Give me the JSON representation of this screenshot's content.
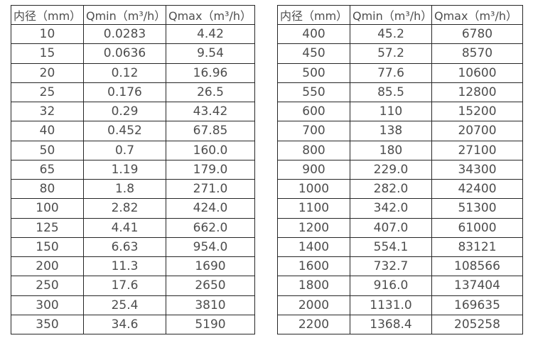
{
  "page": {
    "background": "#ffffff",
    "text_color": "#4d4d4d",
    "border_color": "#262626"
  },
  "tables": [
    {
      "name": "small-diameter-flow-table",
      "headers": [
        "内径（mm）",
        "Qmin（m³/h）",
        "Qmax（m³/h）"
      ],
      "rows": [
        [
          "10",
          "0.0283",
          "4.42"
        ],
        [
          "15",
          "0.0636",
          "9.54"
        ],
        [
          "20",
          "0.12",
          "16.96"
        ],
        [
          "25",
          "0.176",
          "26.5"
        ],
        [
          "32",
          "0.29",
          "43.42"
        ],
        [
          "40",
          "0.452",
          "67.85"
        ],
        [
          "50",
          "0.7",
          "160.0"
        ],
        [
          "65",
          "1.19",
          "179.0"
        ],
        [
          "80",
          "1.8",
          "271.0"
        ],
        [
          "100",
          "2.82",
          "424.0"
        ],
        [
          "125",
          "4.41",
          "662.0"
        ],
        [
          "150",
          "6.63",
          "954.0"
        ],
        [
          "200",
          "11.3",
          "1690"
        ],
        [
          "250",
          "17.6",
          "2650"
        ],
        [
          "300",
          "25.4",
          "3810"
        ],
        [
          "350",
          "34.6",
          "5190"
        ]
      ]
    },
    {
      "name": "large-diameter-flow-table",
      "headers": [
        "内径（mm）",
        "Qmin（m³/h）",
        "Qmax（m³/h）"
      ],
      "rows": [
        [
          "400",
          "45.2",
          "6780"
        ],
        [
          "450",
          "57.2",
          "8570"
        ],
        [
          "500",
          "77.6",
          "10600"
        ],
        [
          "550",
          "85.5",
          "12800"
        ],
        [
          "600",
          "110",
          "15200"
        ],
        [
          "700",
          "138",
          "20700"
        ],
        [
          "800",
          "180",
          "27100"
        ],
        [
          "900",
          "229.0",
          "34300"
        ],
        [
          "1000",
          "282.0",
          "42400"
        ],
        [
          "1100",
          "342.0",
          "51300"
        ],
        [
          "1200",
          "407.0",
          "61000"
        ],
        [
          "1400",
          "554.1",
          "83121"
        ],
        [
          "1600",
          "732.7",
          "108566"
        ],
        [
          "1800",
          "916.0",
          "137404"
        ],
        [
          "2000",
          "1131.0",
          "169635"
        ],
        [
          "2200",
          "1368.4",
          "205258"
        ]
      ]
    }
  ]
}
